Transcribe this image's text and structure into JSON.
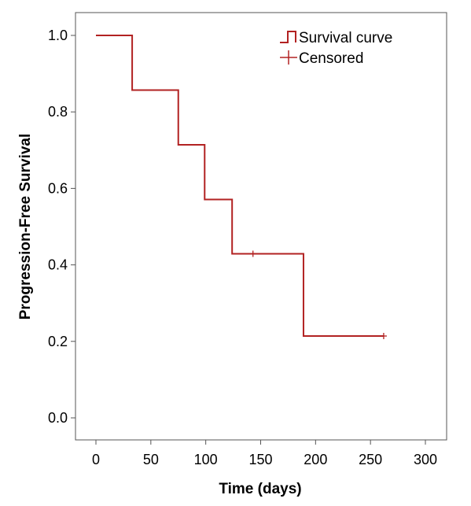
{
  "chart_data": {
    "type": "line",
    "xlabel": "Time (days)",
    "ylabel": "Progression-Free Survival",
    "xlim": [
      0,
      300
    ],
    "ylim": [
      0,
      1.0
    ],
    "x_ticks": [
      "0",
      "50",
      "100",
      "150",
      "200",
      "250",
      "300"
    ],
    "y_ticks": [
      "0.0",
      "0.2",
      "0.4",
      "0.6",
      "0.8",
      "1.0"
    ],
    "series": [
      {
        "name": "Survival curve",
        "step": true,
        "color": "#b22222",
        "points": [
          {
            "x": 0,
            "y": 1.0
          },
          {
            "x": 33,
            "y": 0.857
          },
          {
            "x": 75,
            "y": 0.714
          },
          {
            "x": 99,
            "y": 0.571
          },
          {
            "x": 124,
            "y": 0.429
          },
          {
            "x": 189,
            "y": 0.214
          },
          {
            "x": 262,
            "y": 0.214
          }
        ]
      },
      {
        "name": "Censored",
        "marker": "plus",
        "color": "#b22222",
        "points": [
          {
            "x": 143,
            "y": 0.429
          },
          {
            "x": 262,
            "y": 0.214
          }
        ]
      }
    ],
    "legend": {
      "placement": "top-right",
      "entries": [
        "Survival curve",
        "Censored"
      ]
    },
    "grid": false
  }
}
